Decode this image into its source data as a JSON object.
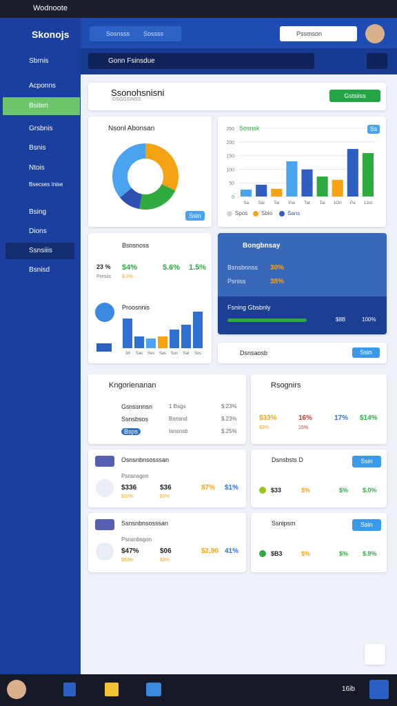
{
  "titlebar": {
    "app": "Wodnoote"
  },
  "sidebar": {
    "brand": "Skonojs",
    "items": [
      "Sbrnis",
      "Acponns",
      "Bsiten",
      "Grsbnis",
      "Bsnis",
      "Ntois",
      "Bsecses Inise",
      "Bsing",
      "Dions",
      "Ssnsiiis",
      "Bsnisd"
    ]
  },
  "header": {
    "search": "Sosnsss",
    "search_hint": "Sossss",
    "search2": "Pssmson"
  },
  "toolbar": {
    "label": "Gonn Fsinsdue"
  },
  "banner": {
    "title": "Ssonohsnisni",
    "subtitle": "DSGGSINSS",
    "button": "Gstsiiss"
  },
  "donut": {
    "title": "Nsonl Abonsan",
    "button": "Ssin",
    "values": [
      32,
      21,
      11,
      36
    ],
    "colors": [
      "#f5a312",
      "#2eaa3f",
      "#2e4fb0",
      "#4aa3ee"
    ]
  },
  "bars": {
    "title": "Sosnsk",
    "badge": "Ss",
    "ylim": [
      0,
      250
    ],
    "yticks": [
      0,
      50,
      100,
      150,
      200,
      250
    ],
    "categories": [
      "Sa",
      "Sai",
      "Tai",
      "Pai",
      "Tat",
      "Tai",
      "1On",
      "Pa",
      "12st"
    ],
    "values": [
      25,
      43,
      28,
      129,
      99,
      73,
      61,
      174,
      159
    ],
    "colors": [
      "#4aa3ee",
      "#2e5fc0",
      "#f5a312",
      "#4aa3ee",
      "#2e5fc0",
      "#2eaa3f",
      "#f5a312",
      "#2e5fc0",
      "#2eaa3f"
    ],
    "legend": [
      "Spos",
      "Sbio",
      "Sans"
    ]
  },
  "stats": {
    "title": "Bsnsnoss",
    "values": [
      "23 %",
      "$4%",
      "$.6%",
      "1.5%"
    ],
    "sub": [
      "Presiis",
      "$.3%"
    ],
    "chart_title": "Proosnnis",
    "chart": {
      "ylim": [
        0,
        60
      ],
      "values": [
        43,
        17,
        14,
        17,
        27,
        34,
        53
      ],
      "colors": [
        "#2e6fd0",
        "#2e6fd0",
        "#4aa3ee",
        "#f5a312",
        "#2e6fd0",
        "#2e6fd0",
        "#2e6fd0"
      ],
      "categories": [
        "3d",
        "Sas",
        "Ses",
        "Sas",
        "Son",
        "Sat",
        "Sos"
      ]
    }
  },
  "budget": {
    "title": "Bongbnsay",
    "rows": [
      [
        "Bsnsbnnss",
        "30%"
      ],
      [
        "Psniss",
        "38%"
      ]
    ],
    "footer": "Fsning Gbsbnly",
    "footer_values": [
      "$8B",
      "100%"
    ]
  },
  "dashboard": {
    "label": "Dsnsaosb",
    "button": "Ssin"
  },
  "list": {
    "title": "Kngorienanan",
    "rows": [
      [
        "Gsnssnnsn",
        "1 Bsgs",
        "$.23%"
      ],
      [
        "Ssnsbsos",
        "Bsnsnd",
        "$.23%"
      ],
      [
        "Bsps",
        "Isnsnsb",
        "$.25%"
      ]
    ]
  },
  "report": {
    "title": "Rsognirs",
    "values": [
      "$33%",
      "16%",
      "17%",
      "$14%"
    ],
    "sub": [
      "$3%",
      "15%"
    ]
  },
  "cards": [
    {
      "title": "Osnsnbnsosssan",
      "sub": "Psnsnsgon",
      "values": [
        "$336",
        "$36",
        "$7%",
        "$1%"
      ],
      "notes": [
        "$33%",
        "$3%"
      ]
    },
    {
      "title": "Ssnsnbnsosssan",
      "sub": "Psnsnbsgon",
      "values": [
        "$47%",
        "$06",
        "$2,90",
        "41%"
      ],
      "notes": [
        "$63%",
        "$3%"
      ]
    }
  ],
  "side_cards": [
    {
      "title": "Dsnsbsts D",
      "button": "Ssin",
      "values": [
        "$33",
        "$%",
        "$%",
        "$.0%"
      ]
    },
    {
      "title": "Ssnipsm",
      "button": "Ssin",
      "values": [
        "$B3",
        "$%",
        "$%",
        "$.9%"
      ]
    }
  ],
  "taskbar": {
    "time": "16ib"
  }
}
